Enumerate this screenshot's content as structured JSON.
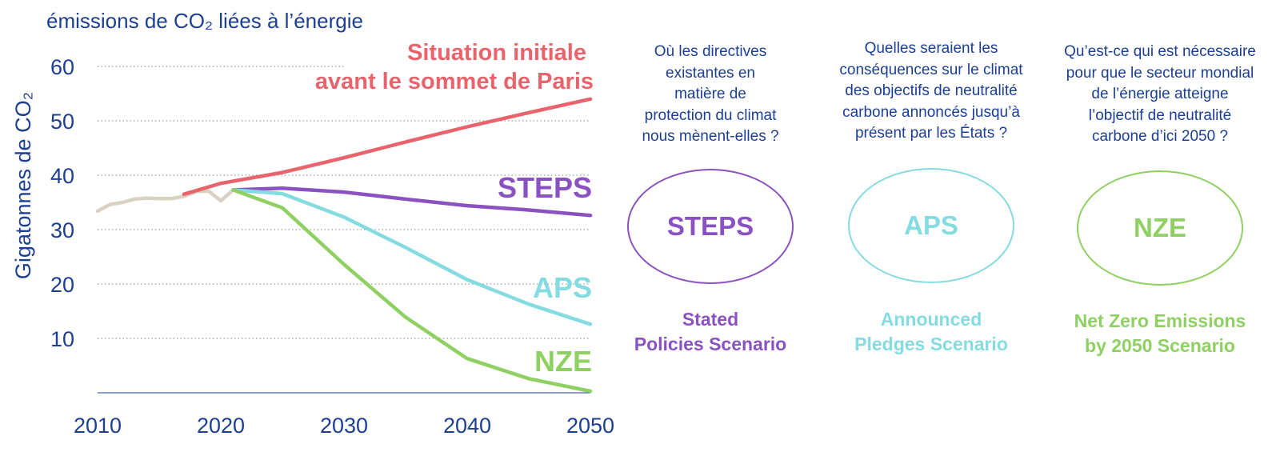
{
  "chart_data": {
    "type": "line",
    "title": "émissions de CO₂ liées à l’énergie",
    "ylabel": "Gigatonnes de CO₂",
    "xlabel": "",
    "xlim": [
      2010,
      2050
    ],
    "ylim": [
      0,
      60
    ],
    "x_ticks": [
      "2010",
      "2020",
      "2030",
      "2040",
      "2050"
    ],
    "y_ticks": [
      "10",
      "20",
      "30",
      "40",
      "50",
      "60"
    ],
    "grid": "horizontal dotted",
    "series": [
      {
        "name": "Situation initiale avant le sommet de Paris",
        "label_lines": [
          "Situation initiale",
          "avant le sommet de Paris"
        ],
        "color": "#e8636b",
        "points": [
          [
            2017,
            36.5
          ],
          [
            2020,
            38.5
          ],
          [
            2025,
            40.5
          ],
          [
            2030,
            43.2
          ],
          [
            2035,
            46.1
          ],
          [
            2040,
            48.9
          ],
          [
            2045,
            51.5
          ],
          [
            2050,
            54.0
          ]
        ]
      },
      {
        "name": "STEPS",
        "label_lines": [
          "STEPS"
        ],
        "color": "#8a52c0",
        "points": [
          [
            2021,
            37.3
          ],
          [
            2025,
            37.6
          ],
          [
            2030,
            36.9
          ],
          [
            2035,
            35.6
          ],
          [
            2040,
            34.4
          ],
          [
            2045,
            33.6
          ],
          [
            2050,
            32.6
          ]
        ]
      },
      {
        "name": "APS",
        "label_lines": [
          "APS"
        ],
        "color": "#84dbe0",
        "points": [
          [
            2021,
            37.3
          ],
          [
            2025,
            36.6
          ],
          [
            2030,
            32.3
          ],
          [
            2035,
            26.7
          ],
          [
            2040,
            20.8
          ],
          [
            2045,
            16.3
          ],
          [
            2050,
            12.6
          ]
        ]
      },
      {
        "name": "NZE",
        "label_lines": [
          "NZE"
        ],
        "color": "#8ed062",
        "points": [
          [
            2021,
            37.3
          ],
          [
            2025,
            34.0
          ],
          [
            2030,
            23.6
          ],
          [
            2035,
            13.9
          ],
          [
            2040,
            6.3
          ],
          [
            2045,
            2.6
          ],
          [
            2050,
            0.3
          ]
        ]
      },
      {
        "name": "",
        "label_lines": [],
        "color": "#d9d1c2",
        "points": [
          [
            2010,
            33.4
          ],
          [
            2011,
            34.6
          ],
          [
            2012,
            35.0
          ],
          [
            2013,
            35.6
          ],
          [
            2014,
            35.8
          ],
          [
            2015,
            35.7
          ],
          [
            2016,
            35.7
          ],
          [
            2017,
            36.1
          ],
          [
            2018,
            37.0
          ],
          [
            2019,
            37.1
          ],
          [
            2020,
            35.3
          ],
          [
            2021,
            37.3
          ]
        ]
      }
    ]
  },
  "scenarios": [
    {
      "question_lines": [
        "Où les directives",
        "existantes en",
        "matière de",
        "protection du climat",
        "nous mènent-elles ?"
      ],
      "abbr": "STEPS",
      "name_lines": [
        "Stated",
        "Policies Scenario"
      ],
      "color": "#8a52c0"
    },
    {
      "question_lines": [
        "Quelles seraient les",
        "conséquences sur le climat",
        "des objectifs de neutralité",
        "carbone annoncés jusqu’à",
        "présent par les États ?"
      ],
      "abbr": "APS",
      "name_lines": [
        "Announced",
        "Pledges Scenario"
      ],
      "color": "#84dbe0"
    },
    {
      "question_lines": [
        "Qu’est-ce qui est nécessaire",
        "pour que le secteur mondial",
        "de l’énergie atteigne",
        "l’objectif de neutralité",
        "carbone d’ici 2050 ?"
      ],
      "abbr": "NZE",
      "name_lines": [
        "Net Zero Emissions",
        "by 2050 Scenario"
      ],
      "color": "#8ed062"
    }
  ],
  "colors": {
    "text": "#1c3f94",
    "grid": "#9a9a9a",
    "axis": "#1c3f94"
  }
}
